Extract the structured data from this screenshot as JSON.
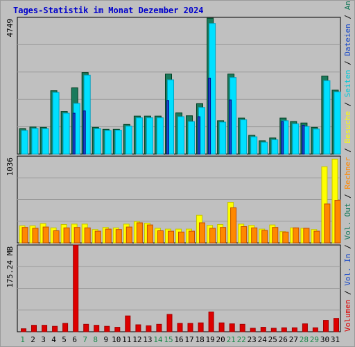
{
  "chart_data": {
    "type": "bar",
    "title": "Tages-Statistik im Monat Dezember 2024",
    "categories": [
      "1",
      "2",
      "3",
      "4",
      "5",
      "6",
      "7",
      "8",
      "9",
      "10",
      "11",
      "12",
      "13",
      "14",
      "15",
      "16",
      "17",
      "18",
      "19",
      "20",
      "21",
      "22",
      "23",
      "24",
      "25",
      "26",
      "27",
      "28",
      "29",
      "30",
      "31"
    ],
    "weekend_days": [
      "1",
      "7",
      "8",
      "14",
      "15",
      "21",
      "22",
      "28",
      "29"
    ],
    "panels": [
      {
        "id": "requests",
        "ymax_label": "4749",
        "ymax": 4749,
        "legend": [
          "Anfragen",
          "Dateien",
          "Seiten"
        ],
        "series": [
          {
            "name": "Anfragen",
            "color": "#1a7a5c",
            "values": [
              880,
              940,
              930,
              2200,
              1480,
              2300,
              2830,
              930,
              860,
              860,
              1030,
              1320,
              1320,
              1320,
              2780,
              1430,
              1330,
              1750,
              4720,
              1160,
              2780,
              1250,
              650,
              460,
              560,
              1250,
              1130,
              1080,
              930,
              2710,
              2220
            ]
          },
          {
            "name": "Dateien",
            "color": "#00e0ff",
            "values": [
              820,
              890,
              880,
              2140,
              1420,
              1760,
              2740,
              880,
              820,
              830,
              970,
              1260,
              1260,
              1260,
              2580,
              1300,
              1130,
              1620,
              4540,
              1110,
              2660,
              1190,
              600,
              410,
              500,
              1160,
              1050,
              960,
              870,
              2550,
              2160
            ]
          },
          {
            "name": "Seiten",
            "color": "#1a4ac8",
            "values": [
              0,
              0,
              0,
              0,
              0,
              1420,
              1500,
              0,
              0,
              0,
              0,
              0,
              0,
              0,
              1860,
              0,
              0,
              1300,
              2640,
              0,
              1880,
              0,
              0,
              0,
              0,
              1130,
              0,
              1000,
              0,
              0,
              0
            ]
          }
        ]
      },
      {
        "id": "visits",
        "ymax_label": "1036",
        "ymax": 1036,
        "legend": [
          "Besuche",
          "Rechner"
        ],
        "series": [
          {
            "name": "Besuche",
            "color": "#ffff00",
            "values": [
              205,
              205,
              230,
              180,
              220,
              225,
              225,
              160,
              185,
              180,
              225,
              255,
              235,
              175,
              165,
              165,
              165,
              330,
              210,
              220,
              485,
              225,
              210,
              165,
              215,
              135,
              180,
              175,
              160,
              910,
              1000
            ]
          },
          {
            "name": "Rechner",
            "color": "#ff8800",
            "values": [
              185,
              175,
              190,
              145,
              180,
              185,
              180,
              140,
              165,
              160,
              190,
              240,
              215,
              145,
              140,
              130,
              140,
              240,
              175,
              185,
              420,
              195,
              180,
              150,
              185,
              130,
              180,
              175,
              140,
              465,
              510
            ]
          }
        ]
      },
      {
        "id": "volume",
        "ymax_label": "175.24 MB",
        "ymax": 175.24,
        "legend": [
          "Volumen"
        ],
        "series": [
          {
            "name": "Volumen",
            "color": "#dd0000",
            "values": [
              6,
              13,
              13,
              11,
              17,
              175,
              15,
              13,
              11,
              9,
              32,
              14,
              12,
              15,
              35,
              17,
              17,
              18,
              40,
              18,
              16,
              15,
              7,
              9,
              7,
              8,
              8,
              16,
              8,
              23,
              27
            ]
          }
        ]
      }
    ],
    "right_legend": [
      {
        "text": "Volumen",
        "color": "#dd0000"
      },
      {
        "text": " / ",
        "color": "#000000"
      },
      {
        "text": "Vol. In",
        "color": "#1a4ac8"
      },
      {
        "text": " / ",
        "color": "#000000"
      },
      {
        "text": "Vol. Out",
        "color": "#1a7a5c"
      },
      {
        "text": " / ",
        "color": "#000000"
      },
      {
        "text": "Rechner",
        "color": "#ff8800"
      },
      {
        "text": " / ",
        "color": "#000000"
      },
      {
        "text": "Besuche",
        "color": "#ffff00"
      },
      {
        "text": " / ",
        "color": "#000000"
      },
      {
        "text": "Seiten",
        "color": "#00c8d8"
      },
      {
        "text": " / ",
        "color": "#000000"
      },
      {
        "text": "Dateien",
        "color": "#1a4ac8"
      },
      {
        "text": " / ",
        "color": "#000000"
      },
      {
        "text": "Anfragen",
        "color": "#1a7a5c"
      }
    ],
    "grid": true
  }
}
